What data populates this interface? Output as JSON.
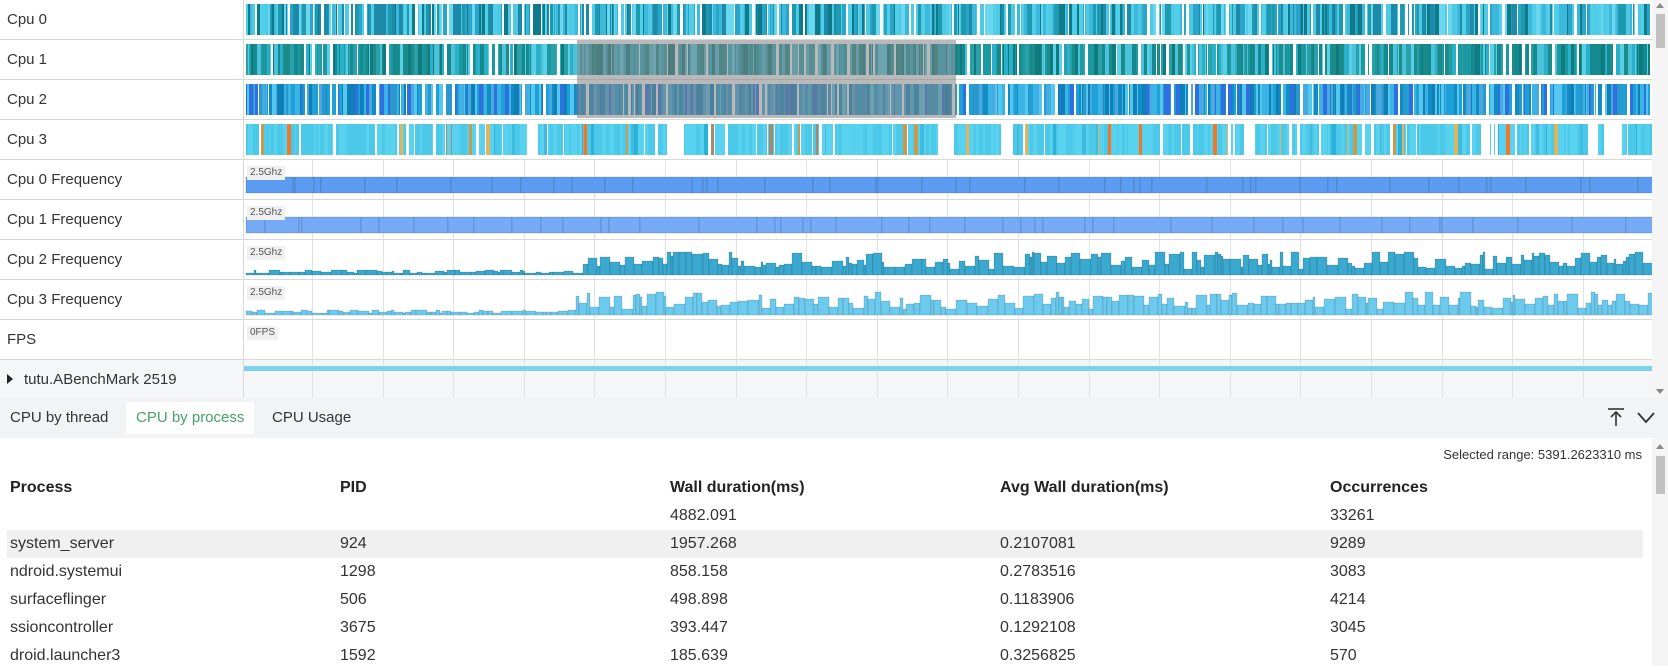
{
  "tracks": [
    {
      "label": "Cpu 0",
      "kind": "cpu",
      "colors": [
        "#52cfe8",
        "#4fc8e4",
        "#2aa4c8",
        "#1c8aa8",
        "#0f7b8a",
        "#6ad6ef",
        "#3bb8dc",
        "#1e9ab0"
      ]
    },
    {
      "label": "Cpu 1",
      "kind": "cpu",
      "colors": [
        "#148a90",
        "#1a9aa0",
        "#0f7b7e",
        "#2ab0c8",
        "#4cc2da",
        "#2ba0a8",
        "#1c8c8a",
        "#5ad0e8"
      ]
    },
    {
      "label": "Cpu 2",
      "kind": "cpu",
      "colors": [
        "#1ea0d8",
        "#3ab4e4",
        "#128cc4",
        "#55c6ec",
        "#2a98cc",
        "#0f7fb8",
        "#4aa8e0",
        "#2f70e0"
      ]
    },
    {
      "label": "Cpu 3",
      "kind": "cpu",
      "colors": [
        "#4cc8e8",
        "#58d2ef",
        "#e0b45a",
        "#2ab2d8",
        "#c99a4c",
        "#a68a6e",
        "#f0782a",
        "#3fbbe0"
      ]
    },
    {
      "label": "Cpu 0 Frequency",
      "kind": "freq",
      "badge": "2.5Ghz",
      "color": "#5b9cf2"
    },
    {
      "label": "Cpu 1 Frequency",
      "kind": "freq",
      "badge": "2.5Ghz",
      "color": "#74aaf6"
    },
    {
      "label": "Cpu 2 Frequency",
      "kind": "freq",
      "badge": "2.5Ghz",
      "color": "#3aa8cf"
    },
    {
      "label": "Cpu 3 Frequency",
      "kind": "freq",
      "badge": "2.5Ghz",
      "color": "#6ccaef"
    },
    {
      "label": "FPS",
      "kind": "fps",
      "badge": "0FPS"
    },
    {
      "label": "tutu.ABenchMark 2519",
      "kind": "process",
      "color": "#7dd3ec"
    }
  ],
  "tabs": [
    "CPU by thread",
    "CPU by process",
    "CPU Usage"
  ],
  "active_tab": 1,
  "selected_range": "Selected range: 5391.2623310 ms",
  "table": {
    "columns": [
      "Process",
      "PID",
      "Wall duration(ms)",
      "Avg Wall duration(ms)",
      "Occurrences"
    ],
    "summary": [
      "",
      "",
      "4882.091",
      "",
      "33261"
    ],
    "rows": [
      [
        "system_server",
        "924",
        "1957.268",
        "0.2107081",
        "9289"
      ],
      [
        "ndroid.systemui",
        "1298",
        "858.158",
        "0.2783516",
        "3083"
      ],
      [
        "surfaceflinger",
        "506",
        "498.898",
        "0.1183906",
        "4214"
      ],
      [
        "ssioncontroller",
        "3675",
        "393.447",
        "0.1292108",
        "3045"
      ],
      [
        "droid.launcher3",
        "1592",
        "185.639",
        "0.3256825",
        "570"
      ]
    ]
  },
  "icons": {
    "collapse_top": "pin-top-icon",
    "chevron": "chevron-down-icon"
  }
}
